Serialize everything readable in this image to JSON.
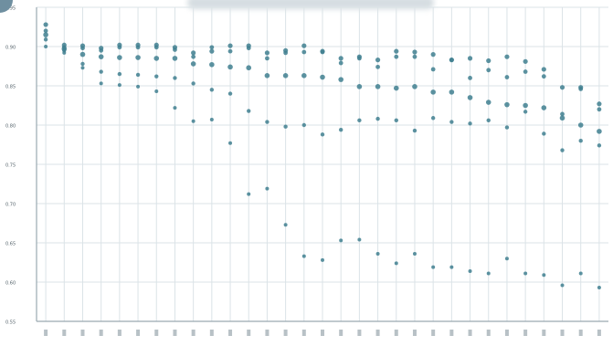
{
  "chart_data": {
    "type": "scatter",
    "title": "",
    "xlabel": "",
    "ylabel": "",
    "ylim": [
      0.55,
      0.95
    ],
    "yticks": [
      "0.95",
      "0.90",
      "0.85",
      "0.80",
      "0.75",
      "0.70",
      "0.65",
      "0.60",
      "0.55"
    ],
    "grid": true,
    "x_count": 31,
    "marker_color": "#3f7f8f",
    "grid_color": "#dbe3e7",
    "axis_color": "#9aa9b1",
    "series": [
      {
        "values": [
          0.928,
          0.902,
          0.901,
          0.898,
          0.902,
          0.902,
          0.902,
          0.899,
          0.892,
          0.894,
          0.901,
          0.901,
          0.892,
          0.895,
          0.901,
          0.894,
          0.885,
          0.887,
          0.883,
          0.894,
          0.893,
          0.89,
          0.883,
          0.885,
          0.882,
          0.887,
          0.881,
          0.871,
          0.848,
          0.848,
          0.827
        ]
      },
      {
        "values": [
          0.92,
          0.899,
          0.898,
          0.895,
          0.899,
          0.899,
          0.899,
          0.896,
          0.887,
          0.899,
          0.894,
          0.898,
          0.885,
          0.892,
          0.893,
          0.893,
          0.879,
          0.885,
          0.874,
          0.887,
          0.887,
          0.871,
          0.883,
          0.86,
          0.87,
          0.861,
          0.868,
          0.862,
          0.814,
          0.846,
          0.82
        ]
      },
      {
        "values": [
          0.915,
          0.897,
          0.89,
          0.887,
          0.886,
          0.886,
          0.885,
          0.885,
          0.878,
          0.877,
          0.874,
          0.873,
          0.863,
          0.863,
          0.863,
          0.861,
          0.858,
          0.849,
          0.849,
          0.847,
          0.849,
          0.842,
          0.842,
          0.835,
          0.829,
          0.826,
          0.825,
          0.822,
          0.809,
          0.8,
          0.792
        ]
      },
      {
        "values": [
          0.909,
          0.895,
          0.878,
          0.868,
          0.865,
          0.864,
          0.862,
          0.86,
          0.853,
          0.845,
          0.84,
          0.818,
          0.804,
          0.798,
          0.8,
          0.788,
          0.794,
          0.806,
          0.808,
          0.806,
          0.793,
          0.809,
          0.804,
          0.802,
          0.806,
          0.797,
          0.817,
          0.789,
          0.768,
          0.78,
          0.774
        ]
      },
      {
        "values": [
          0.9,
          0.892,
          0.873,
          0.853,
          0.851,
          0.849,
          0.843,
          0.822,
          0.805,
          0.807,
          0.777,
          0.712,
          0.719,
          0.673,
          0.633,
          0.628,
          0.653,
          0.654,
          0.636,
          0.624,
          0.636,
          0.619,
          0.619,
          0.614,
          0.611,
          0.63,
          0.611,
          0.609,
          0.596,
          0.611,
          0.593
        ]
      }
    ]
  }
}
